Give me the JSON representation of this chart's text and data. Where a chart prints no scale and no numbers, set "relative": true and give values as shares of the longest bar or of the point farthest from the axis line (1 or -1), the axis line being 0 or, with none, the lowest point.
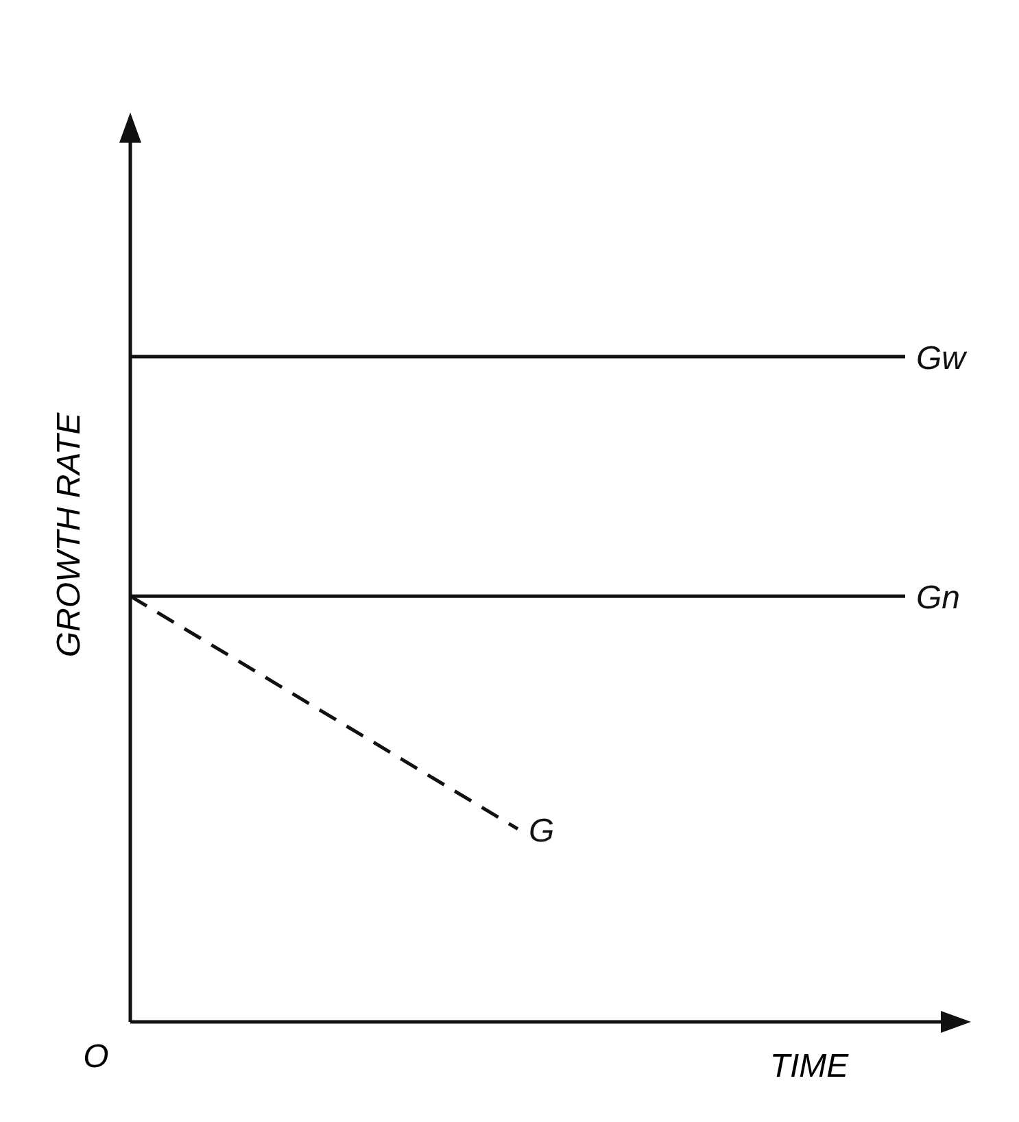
{
  "chart_data": {
    "type": "line",
    "relative": true,
    "xlabel": "TIME",
    "ylabel": "GROWTH RATE",
    "categories": [
      null,
      null,
      null
    ],
    "series": [
      {
        "name": "Gw",
        "color": "#111111",
        "values": [
          1,
          1,
          1
        ],
        "line_style": "solid"
      },
      {
        "name": "Gn",
        "color": "#111111",
        "values": [
          0.64,
          0.64,
          0.64
        ],
        "line_style": "solid"
      },
      {
        "name": "G",
        "color": "#111111",
        "values": [
          0.64,
          0.29,
          null
        ],
        "line_style": "dashed"
      }
    ],
    "annotations": [
      "O"
    ]
  }
}
